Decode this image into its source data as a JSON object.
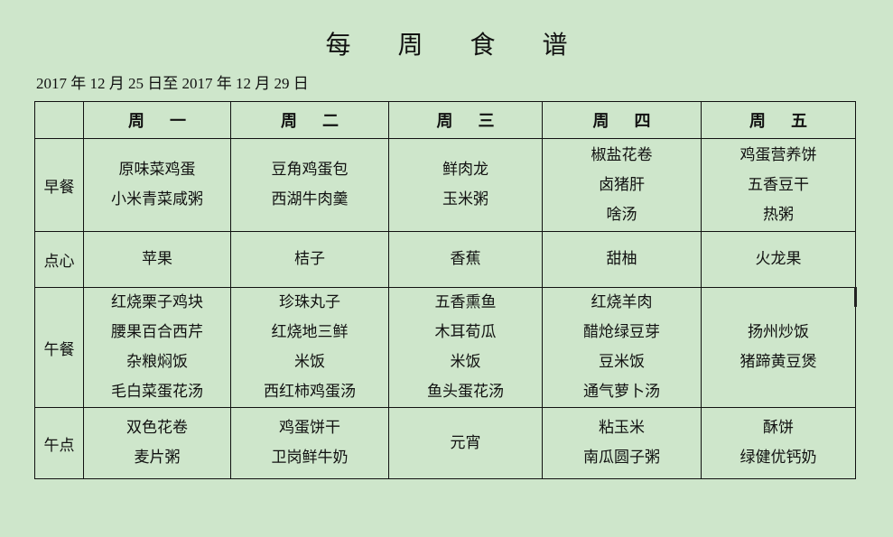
{
  "title_chars": [
    "每",
    "周",
    "食",
    "谱"
  ],
  "date_range": "2017 年 12 月 25 日至 2017 年 12 月 29 日",
  "days": [
    [
      "周",
      "一"
    ],
    [
      "周",
      "二"
    ],
    [
      "周",
      "三"
    ],
    [
      "周",
      "四"
    ],
    [
      "周",
      "五"
    ]
  ],
  "meals": [
    {
      "label": "早餐",
      "cells": [
        [
          "原味菜鸡蛋",
          "小米青菜咸粥"
        ],
        [
          "豆角鸡蛋包",
          "西湖牛肉羹"
        ],
        [
          "鲜肉龙",
          "玉米粥"
        ],
        [
          "椒盐花卷",
          "卤猪肝",
          "啥汤"
        ],
        [
          "鸡蛋营养饼",
          "五香豆干",
          "热粥"
        ]
      ]
    },
    {
      "label": "点心",
      "cells": [
        [
          "苹果"
        ],
        [
          "桔子"
        ],
        [
          "香蕉"
        ],
        [
          "甜柚"
        ],
        [
          "火龙果"
        ]
      ]
    },
    {
      "label": "午餐",
      "cells": [
        [
          "红烧栗子鸡块",
          "腰果百合西芹",
          "杂粮焖饭",
          "毛白菜蛋花汤"
        ],
        [
          "珍珠丸子",
          "红烧地三鲜",
          "米饭",
          "西红柿鸡蛋汤"
        ],
        [
          "五香熏鱼",
          "木耳荀瓜",
          "米饭",
          "鱼头蛋花汤"
        ],
        [
          "红烧羊肉",
          "醋炝绿豆芽",
          "豆米饭",
          "通气萝卜汤"
        ],
        [
          "扬州炒饭",
          "猪蹄黄豆煲"
        ]
      ]
    },
    {
      "label": "午点",
      "cells": [
        [
          "双色花卷",
          "麦片粥"
        ],
        [
          "鸡蛋饼干",
          "卫岗鲜牛奶"
        ],
        [
          "元宵"
        ],
        [
          "粘玉米",
          "南瓜圆子粥"
        ],
        [
          "酥饼",
          "绿健优钙奶"
        ]
      ]
    }
  ]
}
